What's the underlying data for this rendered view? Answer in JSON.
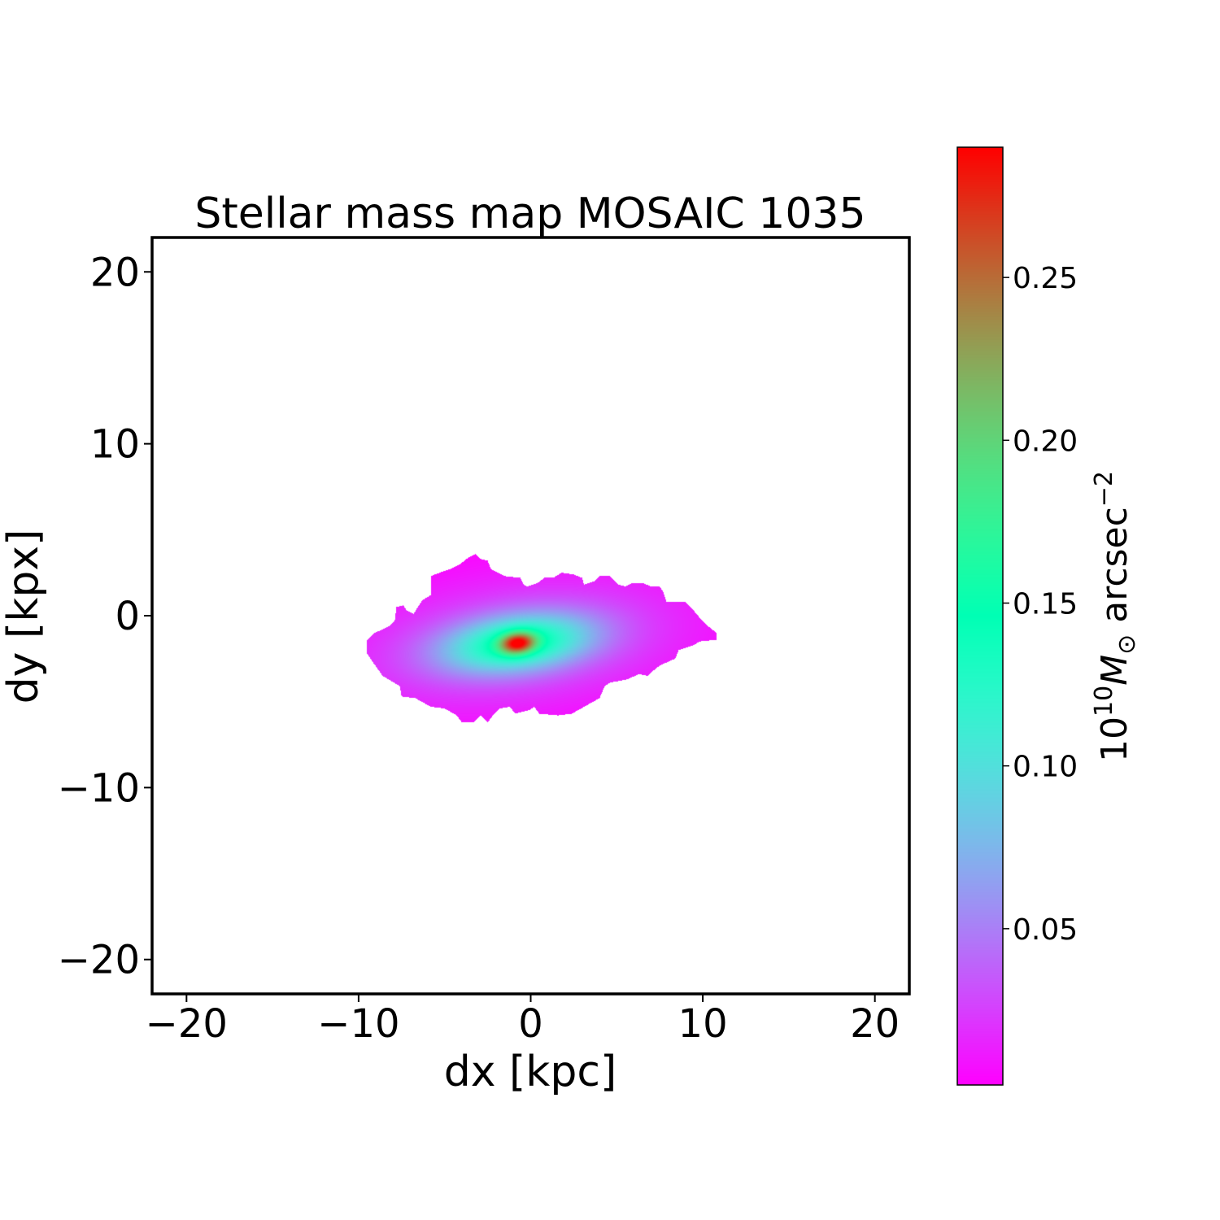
{
  "chart_data": {
    "type": "heatmap",
    "title": "Stellar mass map MOSAIC 1035",
    "xlabel": "dx [kpc]",
    "ylabel": "dy [kpx]",
    "xlim": [
      -22,
      22
    ],
    "ylim": [
      -22,
      22
    ],
    "xticks": [
      -20,
      -10,
      0,
      10,
      20
    ],
    "yticks": [
      -20,
      -10,
      0,
      10,
      20
    ],
    "xtick_labels": [
      "−20",
      "−10",
      "0",
      "10",
      "20"
    ],
    "ytick_labels": [
      "−20",
      "−10",
      "0",
      "10",
      "20"
    ],
    "grid": false,
    "colormap": "rainbow",
    "colorbar": {
      "label_base": "10",
      "label_exp": "10",
      "label_unit": "M",
      "label_sub": "⊙",
      "label_rest": " arcsec",
      "label_rest_exp": "−2",
      "range": [
        0.002,
        0.29
      ],
      "ticks": [
        0.05,
        0.1,
        0.15,
        0.2,
        0.25
      ],
      "tick_labels": [
        "0.05",
        "0.10",
        "0.15",
        "0.20",
        "0.25"
      ],
      "placement": "right"
    },
    "peak": {
      "dx": -0.75,
      "dy": -1.6,
      "value": 0.29
    },
    "mask_outline": [
      [
        -9.5,
        -1.4
      ],
      [
        -9.5,
        -2.2
      ],
      [
        -9.1,
        -2.8
      ],
      [
        -8.6,
        -3.5
      ],
      [
        -7.6,
        -4.1
      ],
      [
        -7.5,
        -4.7
      ],
      [
        -6.7,
        -4.8
      ],
      [
        -5.8,
        -5.3
      ],
      [
        -5.0,
        -5.4
      ],
      [
        -4.3,
        -5.8
      ],
      [
        -4.0,
        -6.2
      ],
      [
        -3.3,
        -6.2
      ],
      [
        -2.9,
        -5.8
      ],
      [
        -2.5,
        -6.2
      ],
      [
        -2.2,
        -5.8
      ],
      [
        -1.8,
        -5.4
      ],
      [
        -1.2,
        -5.3
      ],
      [
        -0.9,
        -5.7
      ],
      [
        -0.1,
        -5.5
      ],
      [
        0.2,
        -5.3
      ],
      [
        0.5,
        -5.7
      ],
      [
        1.6,
        -5.8
      ],
      [
        2.4,
        -5.7
      ],
      [
        3.1,
        -5.3
      ],
      [
        4.0,
        -4.8
      ],
      [
        4.3,
        -4.1
      ],
      [
        4.6,
        -3.9
      ],
      [
        5.6,
        -3.7
      ],
      [
        6.3,
        -3.4
      ],
      [
        6.8,
        -3.5
      ],
      [
        7.0,
        -3.3
      ],
      [
        7.5,
        -2.9
      ],
      [
        8.4,
        -2.5
      ],
      [
        8.6,
        -2.0
      ],
      [
        9.5,
        -1.7
      ],
      [
        9.8,
        -1.5
      ],
      [
        10.8,
        -1.4
      ],
      [
        10.8,
        -1.0
      ],
      [
        10.3,
        -0.6
      ],
      [
        9.8,
        -0.1
      ],
      [
        9.3,
        0.5
      ],
      [
        9.0,
        0.8
      ],
      [
        7.9,
        0.8
      ],
      [
        7.7,
        1.4
      ],
      [
        7.5,
        1.7
      ],
      [
        7.0,
        1.7
      ],
      [
        6.5,
        1.9
      ],
      [
        5.9,
        1.9
      ],
      [
        5.5,
        1.7
      ],
      [
        5.1,
        1.8
      ],
      [
        4.6,
        2.3
      ],
      [
        4.0,
        2.3
      ],
      [
        3.7,
        2.0
      ],
      [
        3.1,
        1.8
      ],
      [
        3.0,
        2.2
      ],
      [
        2.5,
        2.4
      ],
      [
        1.8,
        2.5
      ],
      [
        1.3,
        2.2
      ],
      [
        0.8,
        2.2
      ],
      [
        0.4,
        1.9
      ],
      [
        -0.2,
        1.7
      ],
      [
        -0.4,
        1.8
      ],
      [
        -0.6,
        2.2
      ],
      [
        -1.5,
        2.3
      ],
      [
        -1.9,
        2.5
      ],
      [
        -2.3,
        2.7
      ],
      [
        -2.5,
        3.2
      ],
      [
        -2.9,
        3.3
      ],
      [
        -3.2,
        3.6
      ],
      [
        -3.6,
        3.4
      ],
      [
        -4.1,
        3.0
      ],
      [
        -4.7,
        2.7
      ],
      [
        -5.3,
        2.5
      ],
      [
        -5.8,
        2.3
      ],
      [
        -5.8,
        1.2
      ],
      [
        -6.3,
        0.9
      ],
      [
        -6.5,
        0.6
      ],
      [
        -6.8,
        0.1
      ],
      [
        -7.2,
        0.3
      ],
      [
        -7.4,
        0.6
      ],
      [
        -7.8,
        0.5
      ],
      [
        -7.9,
        -0.3
      ],
      [
        -8.2,
        -0.6
      ],
      [
        -8.6,
        -0.8
      ],
      [
        -9.1,
        -1.0
      ]
    ]
  }
}
